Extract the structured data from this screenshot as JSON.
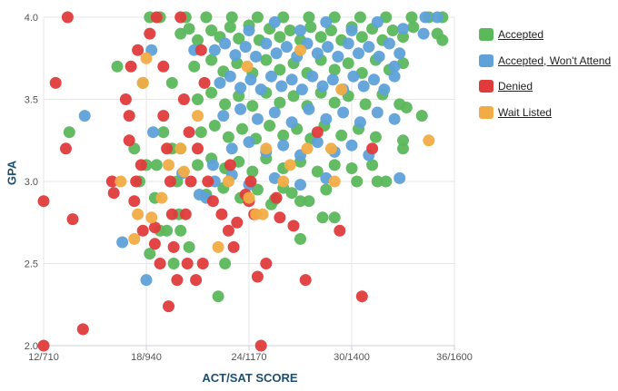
{
  "chart_data": {
    "type": "scatter",
    "title": "",
    "xlabel": "ACT/SAT SCORE",
    "ylabel": "GPA",
    "xlim": [
      12,
      36
    ],
    "ylim": [
      2.0,
      4.0
    ],
    "x_ticks": [
      "12/710",
      "18/940",
      "24/1170",
      "30/1400",
      "36/1600"
    ],
    "y_ticks": [
      "2.0",
      "2.5",
      "3.0",
      "3.5",
      "4.0"
    ],
    "grid": true,
    "legend_position": "right",
    "series": [
      {
        "name": "Accepted",
        "color": "#5bb85b",
        "points": [
          [
            20.0,
            3.9
          ],
          [
            20.5,
            3.93
          ],
          [
            21.0,
            3.86
          ],
          [
            21.8,
            3.92
          ],
          [
            22.3,
            3.88
          ],
          [
            22.9,
            3.94
          ],
          [
            23.4,
            3.87
          ],
          [
            24.0,
            3.95
          ],
          [
            24.6,
            3.86
          ],
          [
            25.2,
            3.93
          ],
          [
            25.8,
            3.88
          ],
          [
            26.4,
            3.92
          ],
          [
            27.0,
            3.86
          ],
          [
            27.6,
            3.94
          ],
          [
            28.2,
            3.88
          ],
          [
            28.8,
            3.92
          ],
          [
            29.4,
            3.86
          ],
          [
            30.0,
            3.94
          ],
          [
            30.6,
            3.88
          ],
          [
            31.2,
            3.93
          ],
          [
            31.8,
            3.86
          ],
          [
            32.4,
            3.92
          ],
          [
            33.0,
            3.88
          ],
          [
            33.6,
            3.94
          ],
          [
            18.2,
            4.0
          ],
          [
            18.8,
            4.0
          ],
          [
            20.3,
            4.0
          ],
          [
            21.5,
            4.0
          ],
          [
            23.0,
            4.0
          ],
          [
            24.5,
            4.0
          ],
          [
            26.0,
            4.0
          ],
          [
            27.5,
            4.0
          ],
          [
            29.0,
            4.0
          ],
          [
            30.5,
            4.0
          ],
          [
            32.0,
            4.0
          ],
          [
            33.5,
            4.0
          ],
          [
            34.5,
            4.0
          ],
          [
            35.3,
            4.0
          ],
          [
            20.8,
            3.7
          ],
          [
            21.8,
            3.74
          ],
          [
            22.5,
            3.67
          ],
          [
            23.3,
            3.72
          ],
          [
            24.2,
            3.66
          ],
          [
            25.0,
            3.74
          ],
          [
            25.8,
            3.68
          ],
          [
            26.6,
            3.72
          ],
          [
            27.4,
            3.66
          ],
          [
            28.2,
            3.74
          ],
          [
            29.0,
            3.68
          ],
          [
            29.8,
            3.72
          ],
          [
            30.6,
            3.66
          ],
          [
            31.4,
            3.74
          ],
          [
            32.2,
            3.68
          ],
          [
            33.0,
            3.72
          ],
          [
            21.0,
            3.5
          ],
          [
            21.8,
            3.54
          ],
          [
            22.6,
            3.47
          ],
          [
            23.4,
            3.52
          ],
          [
            24.2,
            3.46
          ],
          [
            25.0,
            3.54
          ],
          [
            25.8,
            3.48
          ],
          [
            26.6,
            3.52
          ],
          [
            27.4,
            3.46
          ],
          [
            28.2,
            3.54
          ],
          [
            29.0,
            3.48
          ],
          [
            29.8,
            3.52
          ],
          [
            30.8,
            3.47
          ],
          [
            31.8,
            3.53
          ],
          [
            32.8,
            3.47
          ],
          [
            21.2,
            3.3
          ],
          [
            22.0,
            3.34
          ],
          [
            22.8,
            3.27
          ],
          [
            23.6,
            3.32
          ],
          [
            24.4,
            3.26
          ],
          [
            25.2,
            3.34
          ],
          [
            26.0,
            3.28
          ],
          [
            26.8,
            3.32
          ],
          [
            27.6,
            3.26
          ],
          [
            28.4,
            3.34
          ],
          [
            29.4,
            3.28
          ],
          [
            30.4,
            3.32
          ],
          [
            31.4,
            3.27
          ],
          [
            21.0,
            3.1
          ],
          [
            21.8,
            3.14
          ],
          [
            22.6,
            3.08
          ],
          [
            23.4,
            3.12
          ],
          [
            24.2,
            3.06
          ],
          [
            25.0,
            3.14
          ],
          [
            26.0,
            3.08
          ],
          [
            27.0,
            3.12
          ],
          [
            28.0,
            3.06
          ],
          [
            29.0,
            3.1
          ],
          [
            30.0,
            3.08
          ],
          [
            31.2,
            3.1
          ],
          [
            32.0,
            3.0
          ],
          [
            21.5,
            2.92
          ],
          [
            22.5,
            2.96
          ],
          [
            23.5,
            2.9
          ],
          [
            24.5,
            2.95
          ],
          [
            25.5,
            2.89
          ],
          [
            26.5,
            2.93
          ],
          [
            27.5,
            2.88
          ],
          [
            28.5,
            2.95
          ],
          [
            19.0,
            3.3
          ],
          [
            19.5,
            3.2
          ],
          [
            18.6,
            3.1
          ],
          [
            19.8,
            3.0
          ],
          [
            18.5,
            2.9
          ],
          [
            13.5,
            3.3
          ],
          [
            16.3,
            3.7
          ],
          [
            17.8,
            3.6
          ],
          [
            17.3,
            3.2
          ],
          [
            18.0,
            3.1
          ],
          [
            17.6,
            3.0
          ],
          [
            18.8,
            2.7
          ],
          [
            18.2,
            2.56
          ],
          [
            19.6,
            2.5
          ],
          [
            19.2,
            2.7
          ],
          [
            20.5,
            2.6
          ],
          [
            19.9,
            2.8
          ],
          [
            22.2,
            2.3
          ],
          [
            22.6,
            2.5
          ],
          [
            27.0,
            2.65
          ],
          [
            28.3,
            2.78
          ],
          [
            27.0,
            2.88
          ],
          [
            29.0,
            2.78
          ],
          [
            33.0,
            3.2
          ],
          [
            33.0,
            3.25
          ],
          [
            34.1,
            3.4
          ],
          [
            33.2,
            3.45
          ],
          [
            35.0,
            3.9
          ],
          [
            35.3,
            3.86
          ],
          [
            20.0,
            2.7
          ],
          [
            20.0,
            3.2
          ],
          [
            19.5,
            3.6
          ],
          [
            30.3,
            3.0
          ],
          [
            31.5,
            3.0
          ],
          [
            26.0,
            2.96
          ],
          [
            25.3,
            2.86
          ]
        ]
      },
      {
        "name": "Accepted, Won't Attend",
        "color": "#5fa1d8",
        "points": [
          [
            22.0,
            3.8
          ],
          [
            22.6,
            3.84
          ],
          [
            23.2,
            3.77
          ],
          [
            23.8,
            3.82
          ],
          [
            24.4,
            3.76
          ],
          [
            25.0,
            3.84
          ],
          [
            25.6,
            3.78
          ],
          [
            26.2,
            3.82
          ],
          [
            26.8,
            3.76
          ],
          [
            27.4,
            3.84
          ],
          [
            28.0,
            3.78
          ],
          [
            28.6,
            3.82
          ],
          [
            29.2,
            3.76
          ],
          [
            29.8,
            3.84
          ],
          [
            30.4,
            3.78
          ],
          [
            31.0,
            3.82
          ],
          [
            31.6,
            3.76
          ],
          [
            32.2,
            3.84
          ],
          [
            32.8,
            3.78
          ],
          [
            22.3,
            3.6
          ],
          [
            22.9,
            3.64
          ],
          [
            23.5,
            3.57
          ],
          [
            24.1,
            3.62
          ],
          [
            24.7,
            3.56
          ],
          [
            25.3,
            3.64
          ],
          [
            25.9,
            3.58
          ],
          [
            26.5,
            3.62
          ],
          [
            27.1,
            3.56
          ],
          [
            27.7,
            3.64
          ],
          [
            28.3,
            3.58
          ],
          [
            28.9,
            3.62
          ],
          [
            29.5,
            3.56
          ],
          [
            30.1,
            3.64
          ],
          [
            30.7,
            3.58
          ],
          [
            31.3,
            3.62
          ],
          [
            31.9,
            3.56
          ],
          [
            32.5,
            3.64
          ],
          [
            24.0,
            3.92
          ],
          [
            25.5,
            3.97
          ],
          [
            27.0,
            3.92
          ],
          [
            28.5,
            3.97
          ],
          [
            30.0,
            3.92
          ],
          [
            31.5,
            3.97
          ],
          [
            33.0,
            3.93
          ],
          [
            34.3,
            4.0
          ],
          [
            35.0,
            4.0
          ],
          [
            22.5,
            3.4
          ],
          [
            23.5,
            3.44
          ],
          [
            24.5,
            3.38
          ],
          [
            25.5,
            3.42
          ],
          [
            26.5,
            3.36
          ],
          [
            27.5,
            3.44
          ],
          [
            28.5,
            3.38
          ],
          [
            29.5,
            3.42
          ],
          [
            30.5,
            3.36
          ],
          [
            31.5,
            3.42
          ],
          [
            32.5,
            3.38
          ],
          [
            23.0,
            3.2
          ],
          [
            24.0,
            3.24
          ],
          [
            25.0,
            3.18
          ],
          [
            26.0,
            3.22
          ],
          [
            27.0,
            3.16
          ],
          [
            28.0,
            3.24
          ],
          [
            29.0,
            3.18
          ],
          [
            30.0,
            3.22
          ],
          [
            31.0,
            3.16
          ],
          [
            22.0,
            3.0
          ],
          [
            23.0,
            3.04
          ],
          [
            24.0,
            2.98
          ],
          [
            25.5,
            3.02
          ],
          [
            27.0,
            2.98
          ],
          [
            28.5,
            3.02
          ],
          [
            32.8,
            3.02
          ],
          [
            14.4,
            3.4
          ],
          [
            16.6,
            2.63
          ],
          [
            18.0,
            2.4
          ],
          [
            18.4,
            3.3
          ],
          [
            18.3,
            3.8
          ],
          [
            20.1,
            3.05
          ],
          [
            21.1,
            2.92
          ],
          [
            21.5,
            2.9
          ],
          [
            21.9,
            3.1
          ],
          [
            20.8,
            3.8
          ],
          [
            34.2,
            3.9
          ],
          [
            32.5,
            3.7
          ]
        ]
      },
      {
        "name": "Denied",
        "color": "#e03b3b",
        "points": [
          [
            13.4,
            4.0
          ],
          [
            12.7,
            3.6
          ],
          [
            13.3,
            3.2
          ],
          [
            12.0,
            2.88
          ],
          [
            13.7,
            2.77
          ],
          [
            12.0,
            2.0
          ],
          [
            14.3,
            2.1
          ],
          [
            16.0,
            3.0
          ],
          [
            16.1,
            2.93
          ],
          [
            17.0,
            3.4
          ],
          [
            17.4,
            3.0
          ],
          [
            17.7,
            3.1
          ],
          [
            17.3,
            2.88
          ],
          [
            17.8,
            2.7
          ],
          [
            18.5,
            2.62
          ],
          [
            18.8,
            2.5
          ],
          [
            18.5,
            2.72
          ],
          [
            17.0,
            3.25
          ],
          [
            16.8,
            3.5
          ],
          [
            17.5,
            3.8
          ],
          [
            18.2,
            3.9
          ],
          [
            18.6,
            4.0
          ],
          [
            17.1,
            3.7
          ],
          [
            19.0,
            3.4
          ],
          [
            19.2,
            3.2
          ],
          [
            19.4,
            3.0
          ],
          [
            19.5,
            2.8
          ],
          [
            19.6,
            2.6
          ],
          [
            19.8,
            2.4
          ],
          [
            19.3,
            2.24
          ],
          [
            19.0,
            3.7
          ],
          [
            20.2,
            3.5
          ],
          [
            20.5,
            3.3
          ],
          [
            20.6,
            3.0
          ],
          [
            20.3,
            2.8
          ],
          [
            20.4,
            2.5
          ],
          [
            20.9,
            2.4
          ],
          [
            21.3,
            2.5
          ],
          [
            21.0,
            3.2
          ],
          [
            21.6,
            3.0
          ],
          [
            21.9,
            2.88
          ],
          [
            21.4,
            3.6
          ],
          [
            22.4,
            2.8
          ],
          [
            22.8,
            2.7
          ],
          [
            23.1,
            2.6
          ],
          [
            23.3,
            2.75
          ],
          [
            23.8,
            2.92
          ],
          [
            24.0,
            2.88
          ],
          [
            24.3,
            2.8
          ],
          [
            24.5,
            2.42
          ],
          [
            25.0,
            2.5
          ],
          [
            24.7,
            2.0
          ],
          [
            25.6,
            2.9
          ],
          [
            25.8,
            2.78
          ],
          [
            26.6,
            2.73
          ],
          [
            27.3,
            2.4
          ],
          [
            28.0,
            3.3
          ],
          [
            29.3,
            2.7
          ],
          [
            30.6,
            2.3
          ],
          [
            31.2,
            3.2
          ],
          [
            20.0,
            4.0
          ],
          [
            22.9,
            3.1
          ],
          [
            24.1,
            3.0
          ],
          [
            21.2,
            3.8
          ]
        ]
      },
      {
        "name": "Wait Listed",
        "color": "#f2ac45",
        "points": [
          [
            16.5,
            3.0
          ],
          [
            17.5,
            2.8
          ],
          [
            17.3,
            2.65
          ],
          [
            18.3,
            2.78
          ],
          [
            18.0,
            3.75
          ],
          [
            17.8,
            3.6
          ],
          [
            18.9,
            2.9
          ],
          [
            19.3,
            3.1
          ],
          [
            20.0,
            3.2
          ],
          [
            20.2,
            3.06
          ],
          [
            21.0,
            3.4
          ],
          [
            22.2,
            2.6
          ],
          [
            22.8,
            3.0
          ],
          [
            24.0,
            2.9
          ],
          [
            24.4,
            2.8
          ],
          [
            24.8,
            2.8
          ],
          [
            25.0,
            3.2
          ],
          [
            26.0,
            3.0
          ],
          [
            26.4,
            3.1
          ],
          [
            27.4,
            3.2
          ],
          [
            28.8,
            3.2
          ],
          [
            29.0,
            3.0
          ],
          [
            29.4,
            3.56
          ],
          [
            34.5,
            3.25
          ],
          [
            23.9,
            3.7
          ],
          [
            27.0,
            3.8
          ]
        ]
      }
    ]
  }
}
